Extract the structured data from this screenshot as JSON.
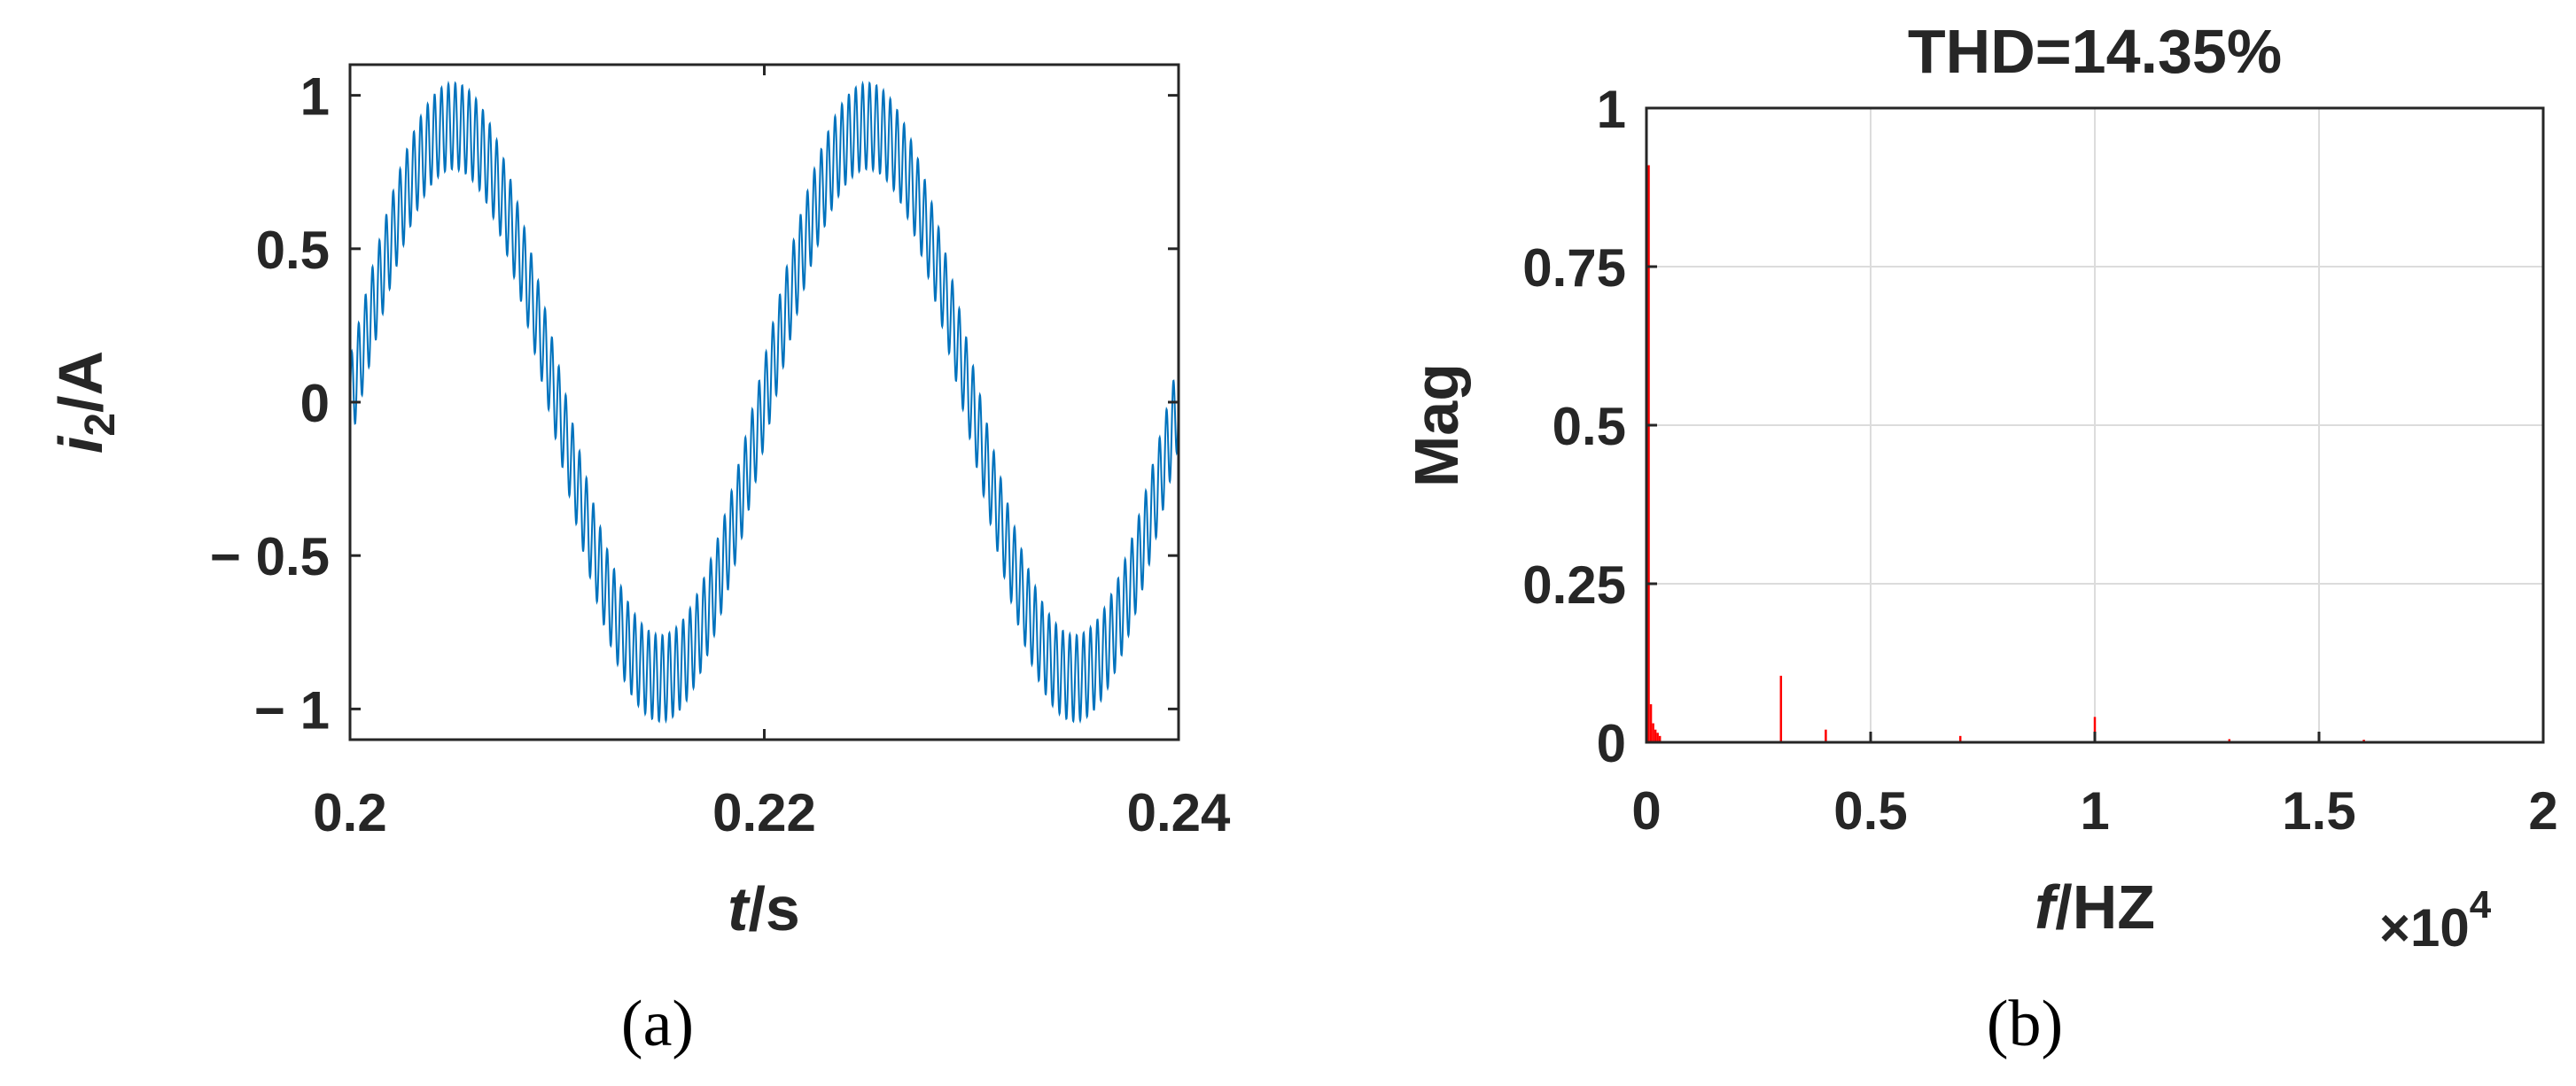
{
  "chart_data": [
    {
      "type": "line",
      "caption": "(a)",
      "xlabel_italic": "t",
      "xlabel_rest": "/s",
      "ylabel_italic": "i",
      "ylabel_sub": "2",
      "ylabel_rest": "/A",
      "xlim": [
        0.2,
        0.24
      ],
      "ylim": [
        -1.1,
        1.1
      ],
      "xticks": [
        0.2,
        0.22,
        0.24
      ],
      "xtick_labels": [
        "0.2",
        "0.22",
        "0.24"
      ],
      "yticks": [
        1,
        0.5,
        0,
        -0.5,
        -1
      ],
      "ytick_labels": [
        "1",
        "0.5",
        "0",
        "− 0.5",
        "− 1"
      ],
      "grid": false,
      "color": "#0072bd",
      "series": [
        {
          "fundamental_frequency_hz": 50,
          "fundamental_amplitude": 0.9,
          "ripple_amplitude": 0.14,
          "ripple_frequency_hz": 3000,
          "x_start": 0.2,
          "x_end": 0.24
        }
      ]
    },
    {
      "type": "bar",
      "caption": "(b)",
      "title": "THD=14.35%",
      "xlabel_italic": "f",
      "xlabel_rest": "/HZ",
      "x_exponent_base": "×10",
      "x_exponent_power": "4",
      "ylabel": "Mag",
      "xlim": [
        0,
        20000
      ],
      "ylim": [
        0,
        1
      ],
      "xticks": [
        0,
        5000,
        10000,
        15000,
        20000
      ],
      "xtick_labels": [
        "0",
        "0.5",
        "1",
        "1.5",
        "2"
      ],
      "yticks": [
        1,
        0.75,
        0.5,
        0.25,
        0
      ],
      "ytick_labels": [
        "1",
        "0.75",
        "0.5",
        "0.25",
        "0"
      ],
      "grid": true,
      "color": "#ff0000",
      "x": [
        50,
        100,
        150,
        200,
        250,
        300,
        3000,
        4000,
        7000,
        10000,
        13000,
        16000
      ],
      "values": [
        0.91,
        0.06,
        0.03,
        0.02,
        0.015,
        0.01,
        0.105,
        0.02,
        0.01,
        0.04,
        0.005,
        0.004
      ]
    }
  ]
}
